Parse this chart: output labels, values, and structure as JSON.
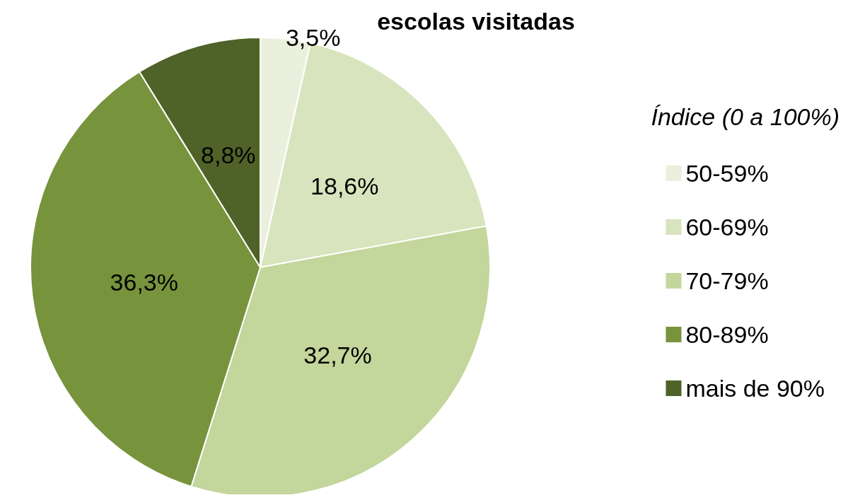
{
  "chart_data": {
    "type": "pie",
    "title": "escolas visitadas",
    "legend_title": "Índice (0 a 100%)",
    "categories": [
      "50-59%",
      "60-69%",
      "70-79%",
      "80-89%",
      "mais de 90%"
    ],
    "values": [
      3.5,
      18.6,
      32.7,
      36.3,
      8.8
    ],
    "value_labels": [
      "3,5%",
      "18,6%",
      "32,7%",
      "36,3%",
      "8,8%"
    ],
    "colors": [
      "#ebf0de",
      "#d7e4bd",
      "#c3d69b",
      "#77933c",
      "#4f6228"
    ],
    "legend": "right"
  }
}
